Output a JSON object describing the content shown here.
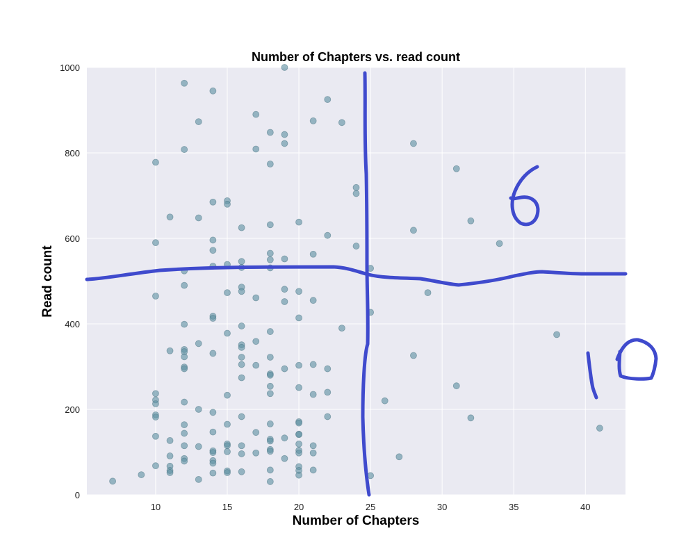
{
  "chart_data": {
    "type": "scatter",
    "title": "Number of Chapters vs. read count",
    "xlabel": "Number of Chapters",
    "ylabel": "Read count",
    "xlim": [
      5.2,
      42.8
    ],
    "ylim": [
      0,
      1000
    ],
    "xticks": [
      10,
      15,
      20,
      25,
      30,
      35,
      40
    ],
    "yticks": [
      0,
      200,
      400,
      600,
      800,
      1000
    ],
    "grid": true,
    "marker_color": "#5f91a3",
    "background_color": "#eaeaf2",
    "points": [
      {
        "x": 7,
        "y": 32
      },
      {
        "x": 9,
        "y": 47
      },
      {
        "x": 10,
        "y": 778
      },
      {
        "x": 10,
        "y": 590
      },
      {
        "x": 10,
        "y": 465
      },
      {
        "x": 10,
        "y": 237
      },
      {
        "x": 10,
        "y": 222
      },
      {
        "x": 10,
        "y": 213
      },
      {
        "x": 10,
        "y": 187
      },
      {
        "x": 10,
        "y": 182
      },
      {
        "x": 10,
        "y": 137
      },
      {
        "x": 10,
        "y": 68
      },
      {
        "x": 11,
        "y": 650
      },
      {
        "x": 11,
        "y": 337
      },
      {
        "x": 11,
        "y": 127
      },
      {
        "x": 11,
        "y": 91
      },
      {
        "x": 11,
        "y": 67
      },
      {
        "x": 11,
        "y": 57
      },
      {
        "x": 11,
        "y": 52
      },
      {
        "x": 12,
        "y": 963
      },
      {
        "x": 12,
        "y": 808
      },
      {
        "x": 12,
        "y": 524
      },
      {
        "x": 12,
        "y": 490
      },
      {
        "x": 12,
        "y": 399
      },
      {
        "x": 12,
        "y": 340
      },
      {
        "x": 12,
        "y": 335
      },
      {
        "x": 12,
        "y": 323
      },
      {
        "x": 12,
        "y": 299
      },
      {
        "x": 12,
        "y": 295
      },
      {
        "x": 12,
        "y": 217
      },
      {
        "x": 12,
        "y": 164
      },
      {
        "x": 12,
        "y": 144
      },
      {
        "x": 12,
        "y": 115
      },
      {
        "x": 12,
        "y": 85
      },
      {
        "x": 12,
        "y": 79
      },
      {
        "x": 13,
        "y": 873
      },
      {
        "x": 13,
        "y": 648
      },
      {
        "x": 13,
        "y": 354
      },
      {
        "x": 13,
        "y": 200
      },
      {
        "x": 13,
        "y": 113
      },
      {
        "x": 13,
        "y": 36
      },
      {
        "x": 14,
        "y": 945
      },
      {
        "x": 14,
        "y": 685
      },
      {
        "x": 14,
        "y": 596
      },
      {
        "x": 14,
        "y": 572
      },
      {
        "x": 14,
        "y": 535
      },
      {
        "x": 14,
        "y": 418
      },
      {
        "x": 14,
        "y": 413
      },
      {
        "x": 14,
        "y": 331
      },
      {
        "x": 14,
        "y": 193
      },
      {
        "x": 14,
        "y": 147
      },
      {
        "x": 14,
        "y": 103
      },
      {
        "x": 14,
        "y": 99
      },
      {
        "x": 14,
        "y": 80
      },
      {
        "x": 14,
        "y": 74
      },
      {
        "x": 14,
        "y": 51
      },
      {
        "x": 15,
        "y": 688
      },
      {
        "x": 15,
        "y": 680
      },
      {
        "x": 15,
        "y": 539
      },
      {
        "x": 15,
        "y": 473
      },
      {
        "x": 15,
        "y": 378
      },
      {
        "x": 15,
        "y": 233
      },
      {
        "x": 15,
        "y": 165
      },
      {
        "x": 15,
        "y": 119
      },
      {
        "x": 15,
        "y": 115
      },
      {
        "x": 15,
        "y": 101
      },
      {
        "x": 15,
        "y": 56
      },
      {
        "x": 15,
        "y": 52
      },
      {
        "x": 16,
        "y": 625
      },
      {
        "x": 16,
        "y": 546
      },
      {
        "x": 16,
        "y": 532
      },
      {
        "x": 16,
        "y": 486
      },
      {
        "x": 16,
        "y": 476
      },
      {
        "x": 16,
        "y": 395
      },
      {
        "x": 16,
        "y": 351
      },
      {
        "x": 16,
        "y": 345
      },
      {
        "x": 16,
        "y": 322
      },
      {
        "x": 16,
        "y": 305
      },
      {
        "x": 16,
        "y": 274
      },
      {
        "x": 16,
        "y": 183
      },
      {
        "x": 16,
        "y": 115
      },
      {
        "x": 16,
        "y": 96
      },
      {
        "x": 16,
        "y": 54
      },
      {
        "x": 17,
        "y": 890
      },
      {
        "x": 17,
        "y": 809
      },
      {
        "x": 17,
        "y": 461
      },
      {
        "x": 17,
        "y": 359
      },
      {
        "x": 17,
        "y": 303
      },
      {
        "x": 17,
        "y": 146
      },
      {
        "x": 17,
        "y": 98
      },
      {
        "x": 18,
        "y": 848
      },
      {
        "x": 18,
        "y": 774
      },
      {
        "x": 18,
        "y": 632
      },
      {
        "x": 18,
        "y": 565
      },
      {
        "x": 18,
        "y": 550
      },
      {
        "x": 18,
        "y": 531
      },
      {
        "x": 18,
        "y": 382
      },
      {
        "x": 18,
        "y": 322
      },
      {
        "x": 18,
        "y": 283
      },
      {
        "x": 18,
        "y": 280
      },
      {
        "x": 18,
        "y": 254
      },
      {
        "x": 18,
        "y": 237
      },
      {
        "x": 18,
        "y": 166
      },
      {
        "x": 18,
        "y": 130
      },
      {
        "x": 18,
        "y": 126
      },
      {
        "x": 18,
        "y": 106
      },
      {
        "x": 18,
        "y": 102
      },
      {
        "x": 18,
        "y": 58
      },
      {
        "x": 18,
        "y": 31
      },
      {
        "x": 19,
        "y": 1000
      },
      {
        "x": 19,
        "y": 843
      },
      {
        "x": 19,
        "y": 822
      },
      {
        "x": 19,
        "y": 552
      },
      {
        "x": 19,
        "y": 481
      },
      {
        "x": 19,
        "y": 452
      },
      {
        "x": 19,
        "y": 295
      },
      {
        "x": 19,
        "y": 133
      },
      {
        "x": 19,
        "y": 85
      },
      {
        "x": 20,
        "y": 638
      },
      {
        "x": 20,
        "y": 476
      },
      {
        "x": 20,
        "y": 414
      },
      {
        "x": 20,
        "y": 303
      },
      {
        "x": 20,
        "y": 251
      },
      {
        "x": 20,
        "y": 171
      },
      {
        "x": 20,
        "y": 168
      },
      {
        "x": 20,
        "y": 142
      },
      {
        "x": 20,
        "y": 141
      },
      {
        "x": 20,
        "y": 119
      },
      {
        "x": 20,
        "y": 104
      },
      {
        "x": 20,
        "y": 98
      },
      {
        "x": 20,
        "y": 66
      },
      {
        "x": 20,
        "y": 57
      },
      {
        "x": 20,
        "y": 46
      },
      {
        "x": 21,
        "y": 875
      },
      {
        "x": 21,
        "y": 563
      },
      {
        "x": 21,
        "y": 455
      },
      {
        "x": 21,
        "y": 305
      },
      {
        "x": 21,
        "y": 235
      },
      {
        "x": 21,
        "y": 115
      },
      {
        "x": 21,
        "y": 98
      },
      {
        "x": 21,
        "y": 58
      },
      {
        "x": 22,
        "y": 925
      },
      {
        "x": 22,
        "y": 607
      },
      {
        "x": 22,
        "y": 295
      },
      {
        "x": 22,
        "y": 240
      },
      {
        "x": 22,
        "y": 183
      },
      {
        "x": 23,
        "y": 871
      },
      {
        "x": 23,
        "y": 390
      },
      {
        "x": 24,
        "y": 719
      },
      {
        "x": 24,
        "y": 705
      },
      {
        "x": 24,
        "y": 582
      },
      {
        "x": 25,
        "y": 530
      },
      {
        "x": 25,
        "y": 427
      },
      {
        "x": 25,
        "y": 45
      },
      {
        "x": 26,
        "y": 220
      },
      {
        "x": 27,
        "y": 89
      },
      {
        "x": 28,
        "y": 822
      },
      {
        "x": 28,
        "y": 619
      },
      {
        "x": 28,
        "y": 326
      },
      {
        "x": 29,
        "y": 473
      },
      {
        "x": 31,
        "y": 763
      },
      {
        "x": 31,
        "y": 255
      },
      {
        "x": 32,
        "y": 641
      },
      {
        "x": 32,
        "y": 180
      },
      {
        "x": 34,
        "y": 588
      },
      {
        "x": 38,
        "y": 375
      },
      {
        "x": 41,
        "y": 156
      }
    ]
  },
  "annotations": {
    "ink_color": "#3f4acd",
    "marks": [
      "6",
      "10"
    ]
  }
}
